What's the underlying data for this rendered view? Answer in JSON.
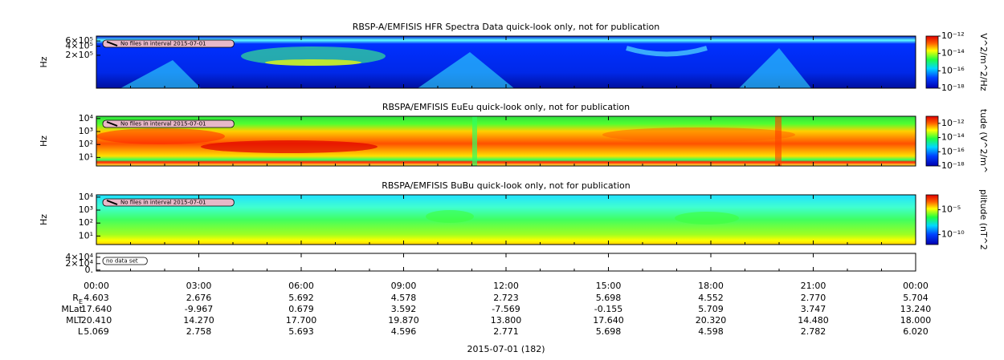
{
  "chart_data": [
    {
      "type": "spectrogram",
      "title": "RBSP-A/EMFISIS  HFR Spectra Data quick-look only, not for publication",
      "ylabel": "Hz",
      "yscale": "log",
      "ylim": [
        16000,
        870000
      ],
      "yticks": [
        {
          "value": 200000,
          "label": "2×10⁵"
        },
        {
          "value": 400000,
          "label": "4×10⁵"
        },
        {
          "value": 600000,
          "label": "6×10⁵"
        }
      ],
      "notice": "No files in interval 2015-07-01",
      "colorbar": {
        "label": "V^2/m^2/Hz",
        "clim": [
          1e-18,
          1e-12
        ],
        "ticks": [
          {
            "value": 1e-12,
            "label": "10⁻¹²"
          },
          {
            "value": 1e-14,
            "label": "10⁻¹⁴"
          },
          {
            "value": 1e-16,
            "label": "10⁻¹⁶"
          },
          {
            "value": 1e-18,
            "label": "10⁻¹⁸"
          }
        ]
      }
    },
    {
      "type": "spectrogram",
      "title": "RBSPA/EMFISIS  EuEu quick-look only, not for publication",
      "ylabel": "Hz",
      "yscale": "log",
      "ylim": [
        2.2,
        15000
      ],
      "yticks": [
        {
          "value": 10,
          "label": "10¹"
        },
        {
          "value": 100,
          "label": "10²"
        },
        {
          "value": 1000,
          "label": "10³"
        },
        {
          "value": 10000,
          "label": "10⁴"
        }
      ],
      "notice": "No files in interval 2015-07-01",
      "colorbar": {
        "label": "tude (V^2/m^",
        "clim": [
          1e-18,
          1e-11
        ],
        "ticks": [
          {
            "value": 1e-12,
            "label": "10⁻¹²"
          },
          {
            "value": 1e-14,
            "label": "10⁻¹⁴"
          },
          {
            "value": 1e-16,
            "label": "10⁻¹⁶"
          },
          {
            "value": 1e-18,
            "label": "10⁻¹⁸"
          }
        ]
      }
    },
    {
      "type": "spectrogram",
      "title": "RBSPA/EMFISIS  BuBu quick-look only, not for publication",
      "ylabel": "Hz",
      "yscale": "log",
      "ylim": [
        2.2,
        15000
      ],
      "yticks": [
        {
          "value": 10,
          "label": "10¹"
        },
        {
          "value": 100,
          "label": "10²"
        },
        {
          "value": 1000,
          "label": "10³"
        },
        {
          "value": 10000,
          "label": "10⁴"
        }
      ],
      "notice": "No files in interval 2015-07-01",
      "colorbar": {
        "label": "plitude (nT^2",
        "clim": [
          1e-12,
          0.01
        ],
        "ticks": [
          {
            "value": 1e-05,
            "label": "10⁻⁵"
          },
          {
            "value": 1e-10,
            "label": "10⁻¹⁰"
          }
        ]
      }
    },
    {
      "type": "empty",
      "yscale": "linear",
      "ylim": [
        -3000,
        52000
      ],
      "yticks": [
        {
          "value": 0,
          "label": "0."
        },
        {
          "value": 20000,
          "label": "2×10⁴"
        },
        {
          "value": 40000,
          "label": "4×10⁴"
        }
      ],
      "notice": "no data set"
    }
  ],
  "time_axis": {
    "xlim": [
      0,
      24
    ],
    "xticks": [
      {
        "value": 0,
        "label": "00:00"
      },
      {
        "value": 3,
        "label": "03:00"
      },
      {
        "value": 6,
        "label": "06:00"
      },
      {
        "value": 9,
        "label": "09:00"
      },
      {
        "value": 12,
        "label": "12:00"
      },
      {
        "value": 15,
        "label": "15:00"
      },
      {
        "value": 18,
        "label": "18:00"
      },
      {
        "value": 21,
        "label": "21:00"
      },
      {
        "value": 24,
        "label": "00:00"
      }
    ],
    "minor_xticks": [
      1,
      2,
      4,
      5,
      7,
      8,
      10,
      11,
      13,
      14,
      16,
      17,
      19,
      20,
      22,
      23
    ]
  },
  "ephemeris": [
    {
      "label": "R",
      "subscript": "E",
      "values": [
        "4.603",
        "2.676",
        "5.692",
        "4.578",
        "2.723",
        "5.698",
        "4.552",
        "2.770",
        "5.704"
      ]
    },
    {
      "label": "MLat",
      "values": [
        "17.640",
        "-9.967",
        "0.679",
        "3.592",
        "-7.569",
        "-0.155",
        "5.709",
        "3.747",
        "13.240"
      ]
    },
    {
      "label": "MLT",
      "values": [
        "20.410",
        "14.270",
        "17.700",
        "19.870",
        "13.800",
        "17.640",
        "20.320",
        "14.480",
        "18.000"
      ]
    },
    {
      "label": "L",
      "values": [
        "5.069",
        "2.758",
        "5.693",
        "4.596",
        "2.771",
        "5.698",
        "4.598",
        "2.782",
        "6.020"
      ]
    }
  ],
  "date_label": "2015-07-01 (182)"
}
